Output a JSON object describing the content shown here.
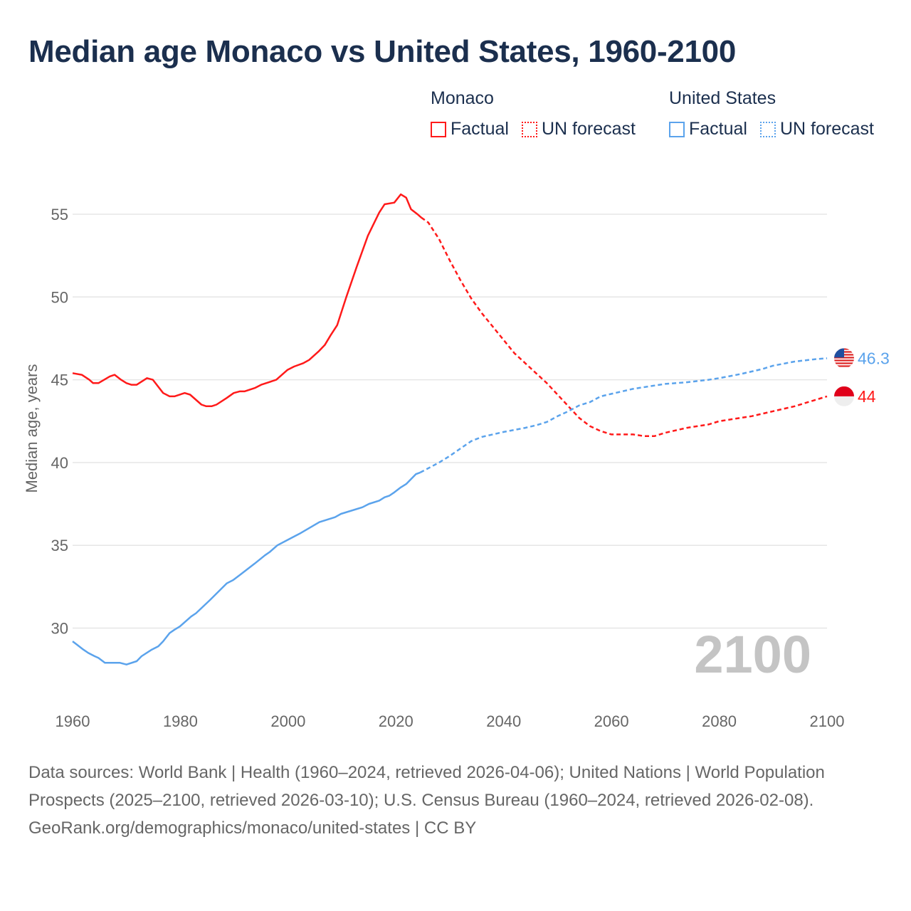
{
  "title": "Median age Monaco vs United States, 1960-2100",
  "legend": {
    "groups": [
      {
        "name": "Monaco",
        "color": "#ff1a1a",
        "factual_label": "Factual",
        "forecast_label": "UN forecast"
      },
      {
        "name": "United States",
        "color": "#5ba3ec",
        "factual_label": "Factual",
        "forecast_label": "UN forecast"
      }
    ]
  },
  "chart_data": {
    "type": "line",
    "title": "Median age Monaco vs United States, 1960-2100",
    "xlabel": "",
    "ylabel": "Median age, years",
    "xlim": [
      1960,
      2100
    ],
    "ylim": [
      26,
      57
    ],
    "x_ticks": [
      1960,
      1980,
      2000,
      2020,
      2040,
      2060,
      2080,
      2100
    ],
    "y_ticks": [
      30,
      35,
      40,
      45,
      50,
      55
    ],
    "grid": true,
    "year_watermark": "2100",
    "series": [
      {
        "name": "Monaco Factual",
        "country": "Monaco",
        "color": "#ff1a1a",
        "style": "solid",
        "points": [
          [
            1960,
            45.4
          ],
          [
            1961.7,
            45.3
          ],
          [
            1963.1,
            45.0
          ],
          [
            1963.8,
            44.8
          ],
          [
            1964.8,
            44.8
          ],
          [
            1966.9,
            45.2
          ],
          [
            1967.8,
            45.3
          ],
          [
            1969,
            45.0
          ],
          [
            1970,
            44.8
          ],
          [
            1970.9,
            44.7
          ],
          [
            1971.9,
            44.7
          ],
          [
            1973.8,
            45.1
          ],
          [
            1974.9,
            45.0
          ],
          [
            1976.8,
            44.2
          ],
          [
            1978,
            44.0
          ],
          [
            1978.9,
            44.0
          ],
          [
            1980.8,
            44.2
          ],
          [
            1981.8,
            44.1
          ],
          [
            1983.9,
            43.5
          ],
          [
            1984.8,
            43.4
          ],
          [
            1985.8,
            43.4
          ],
          [
            1986.7,
            43.5
          ],
          [
            1988.6,
            43.9
          ],
          [
            1989.9,
            44.2
          ],
          [
            1991,
            44.3
          ],
          [
            1991.9,
            44.3
          ],
          [
            1993.8,
            44.5
          ],
          [
            1995,
            44.7
          ],
          [
            1997.8,
            45.0
          ],
          [
            1999.9,
            45.6
          ],
          [
            2001.1,
            45.8
          ],
          [
            2002.8,
            46.0
          ],
          [
            2003.9,
            46.2
          ],
          [
            2005.6,
            46.7
          ],
          [
            2006.8,
            47.1
          ],
          [
            2007.9,
            47.7
          ],
          [
            2009.1,
            48.3
          ],
          [
            2010.8,
            50.0
          ],
          [
            2012.7,
            51.8
          ],
          [
            2014.8,
            53.7
          ],
          [
            2016,
            54.5
          ],
          [
            2016.9,
            55.1
          ],
          [
            2017.9,
            55.6
          ],
          [
            2019.7,
            55.7
          ],
          [
            2020.9,
            56.2
          ],
          [
            2021.9,
            56.0
          ],
          [
            2022.8,
            55.3
          ],
          [
            2024,
            55.0
          ],
          [
            2024.7,
            54.8
          ]
        ]
      },
      {
        "name": "Monaco UN forecast",
        "country": "Monaco",
        "color": "#ff1a1a",
        "style": "dashed",
        "points": [
          [
            2024.7,
            54.8
          ],
          [
            2026,
            54.5
          ],
          [
            2028,
            53.5
          ],
          [
            2030,
            52.2
          ],
          [
            2032,
            51.0
          ],
          [
            2034,
            49.9
          ],
          [
            2036,
            49.0
          ],
          [
            2038,
            48.2
          ],
          [
            2040,
            47.4
          ],
          [
            2042,
            46.6
          ],
          [
            2044,
            46.0
          ],
          [
            2046,
            45.4
          ],
          [
            2048,
            44.8
          ],
          [
            2050,
            44.1
          ],
          [
            2052,
            43.4
          ],
          [
            2054,
            42.7
          ],
          [
            2056,
            42.2
          ],
          [
            2058,
            41.9
          ],
          [
            2060,
            41.7
          ],
          [
            2064,
            41.7
          ],
          [
            2066,
            41.6
          ],
          [
            2068,
            41.6
          ],
          [
            2070,
            41.8
          ],
          [
            2074,
            42.1
          ],
          [
            2078,
            42.3
          ],
          [
            2080,
            42.5
          ],
          [
            2084,
            42.7
          ],
          [
            2086,
            42.8
          ],
          [
            2090,
            43.1
          ],
          [
            2094,
            43.4
          ],
          [
            2098,
            43.8
          ],
          [
            2100,
            44.0
          ]
        ]
      },
      {
        "name": "United States Factual",
        "country": "United States",
        "color": "#5ba3ec",
        "style": "solid",
        "points": [
          [
            1960,
            29.2
          ],
          [
            1960.8,
            29.0
          ],
          [
            1962,
            28.7
          ],
          [
            1962.9,
            28.5
          ],
          [
            1964.1,
            28.3
          ],
          [
            1964.8,
            28.2
          ],
          [
            1966,
            27.9
          ],
          [
            1968.8,
            27.9
          ],
          [
            1970,
            27.8
          ],
          [
            1971.9,
            28.0
          ],
          [
            1972.8,
            28.3
          ],
          [
            1974.7,
            28.7
          ],
          [
            1975.9,
            28.9
          ],
          [
            1976.8,
            29.2
          ],
          [
            1978,
            29.7
          ],
          [
            1978.9,
            29.9
          ],
          [
            1979.9,
            30.1
          ],
          [
            1982,
            30.7
          ],
          [
            1982.9,
            30.9
          ],
          [
            1985.5,
            31.7
          ],
          [
            1988.6,
            32.7
          ],
          [
            1989.8,
            32.9
          ],
          [
            1991,
            33.2
          ],
          [
            1993.8,
            33.9
          ],
          [
            1995.7,
            34.4
          ],
          [
            1996.6,
            34.6
          ],
          [
            1998,
            35.0
          ],
          [
            2000.9,
            35.5
          ],
          [
            2002.1,
            35.7
          ],
          [
            2005.8,
            36.4
          ],
          [
            2008.7,
            36.7
          ],
          [
            2009.8,
            36.9
          ],
          [
            2013.8,
            37.3
          ],
          [
            2015,
            37.5
          ],
          [
            2016.9,
            37.7
          ],
          [
            2017.9,
            37.9
          ],
          [
            2018.8,
            38.0
          ],
          [
            2019.7,
            38.2
          ],
          [
            2020.9,
            38.5
          ],
          [
            2021.9,
            38.7
          ],
          [
            2023.7,
            39.3
          ],
          [
            2024.5,
            39.4
          ]
        ]
      },
      {
        "name": "United States UN forecast",
        "country": "United States",
        "color": "#5ba3ec",
        "style": "dashed",
        "points": [
          [
            2024.5,
            39.4
          ],
          [
            2028,
            40.0
          ],
          [
            2030,
            40.4
          ],
          [
            2032,
            40.85
          ],
          [
            2034,
            41.3
          ],
          [
            2036,
            41.55
          ],
          [
            2038,
            41.7
          ],
          [
            2040,
            41.85
          ],
          [
            2044,
            42.1
          ],
          [
            2046,
            42.25
          ],
          [
            2048,
            42.45
          ],
          [
            2050,
            42.8
          ],
          [
            2052,
            43.1
          ],
          [
            2054,
            43.45
          ],
          [
            2056,
            43.65
          ],
          [
            2058,
            44.0
          ],
          [
            2060,
            44.15
          ],
          [
            2064,
            44.45
          ],
          [
            2068,
            44.65
          ],
          [
            2070,
            44.75
          ],
          [
            2074,
            44.85
          ],
          [
            2078,
            45.0
          ],
          [
            2080,
            45.1
          ],
          [
            2084,
            45.35
          ],
          [
            2088,
            45.65
          ],
          [
            2090,
            45.85
          ],
          [
            2094,
            46.1
          ],
          [
            2098,
            46.25
          ],
          [
            2100,
            46.3
          ]
        ]
      }
    ],
    "end_labels": [
      {
        "country": "United States",
        "value": 46.3,
        "text": "46.3",
        "color": "#5ba3ec",
        "flag": "us-flag-icon"
      },
      {
        "country": "Monaco",
        "value": 44.0,
        "text": "44",
        "color": "#ff1a1a",
        "flag": "monaco-flag-icon"
      }
    ]
  },
  "footer": {
    "sources": "Data sources: World Bank | Health (1960–2024, retrieved 2026-04-06); United Nations | World Population Prospects (2025–2100, retrieved 2026-03-10); U.S. Census Bureau (1960–2024, retrieved 2026-02-08).",
    "credit": "GeoRank.org/demographics/monaco/united-states | CC BY"
  }
}
